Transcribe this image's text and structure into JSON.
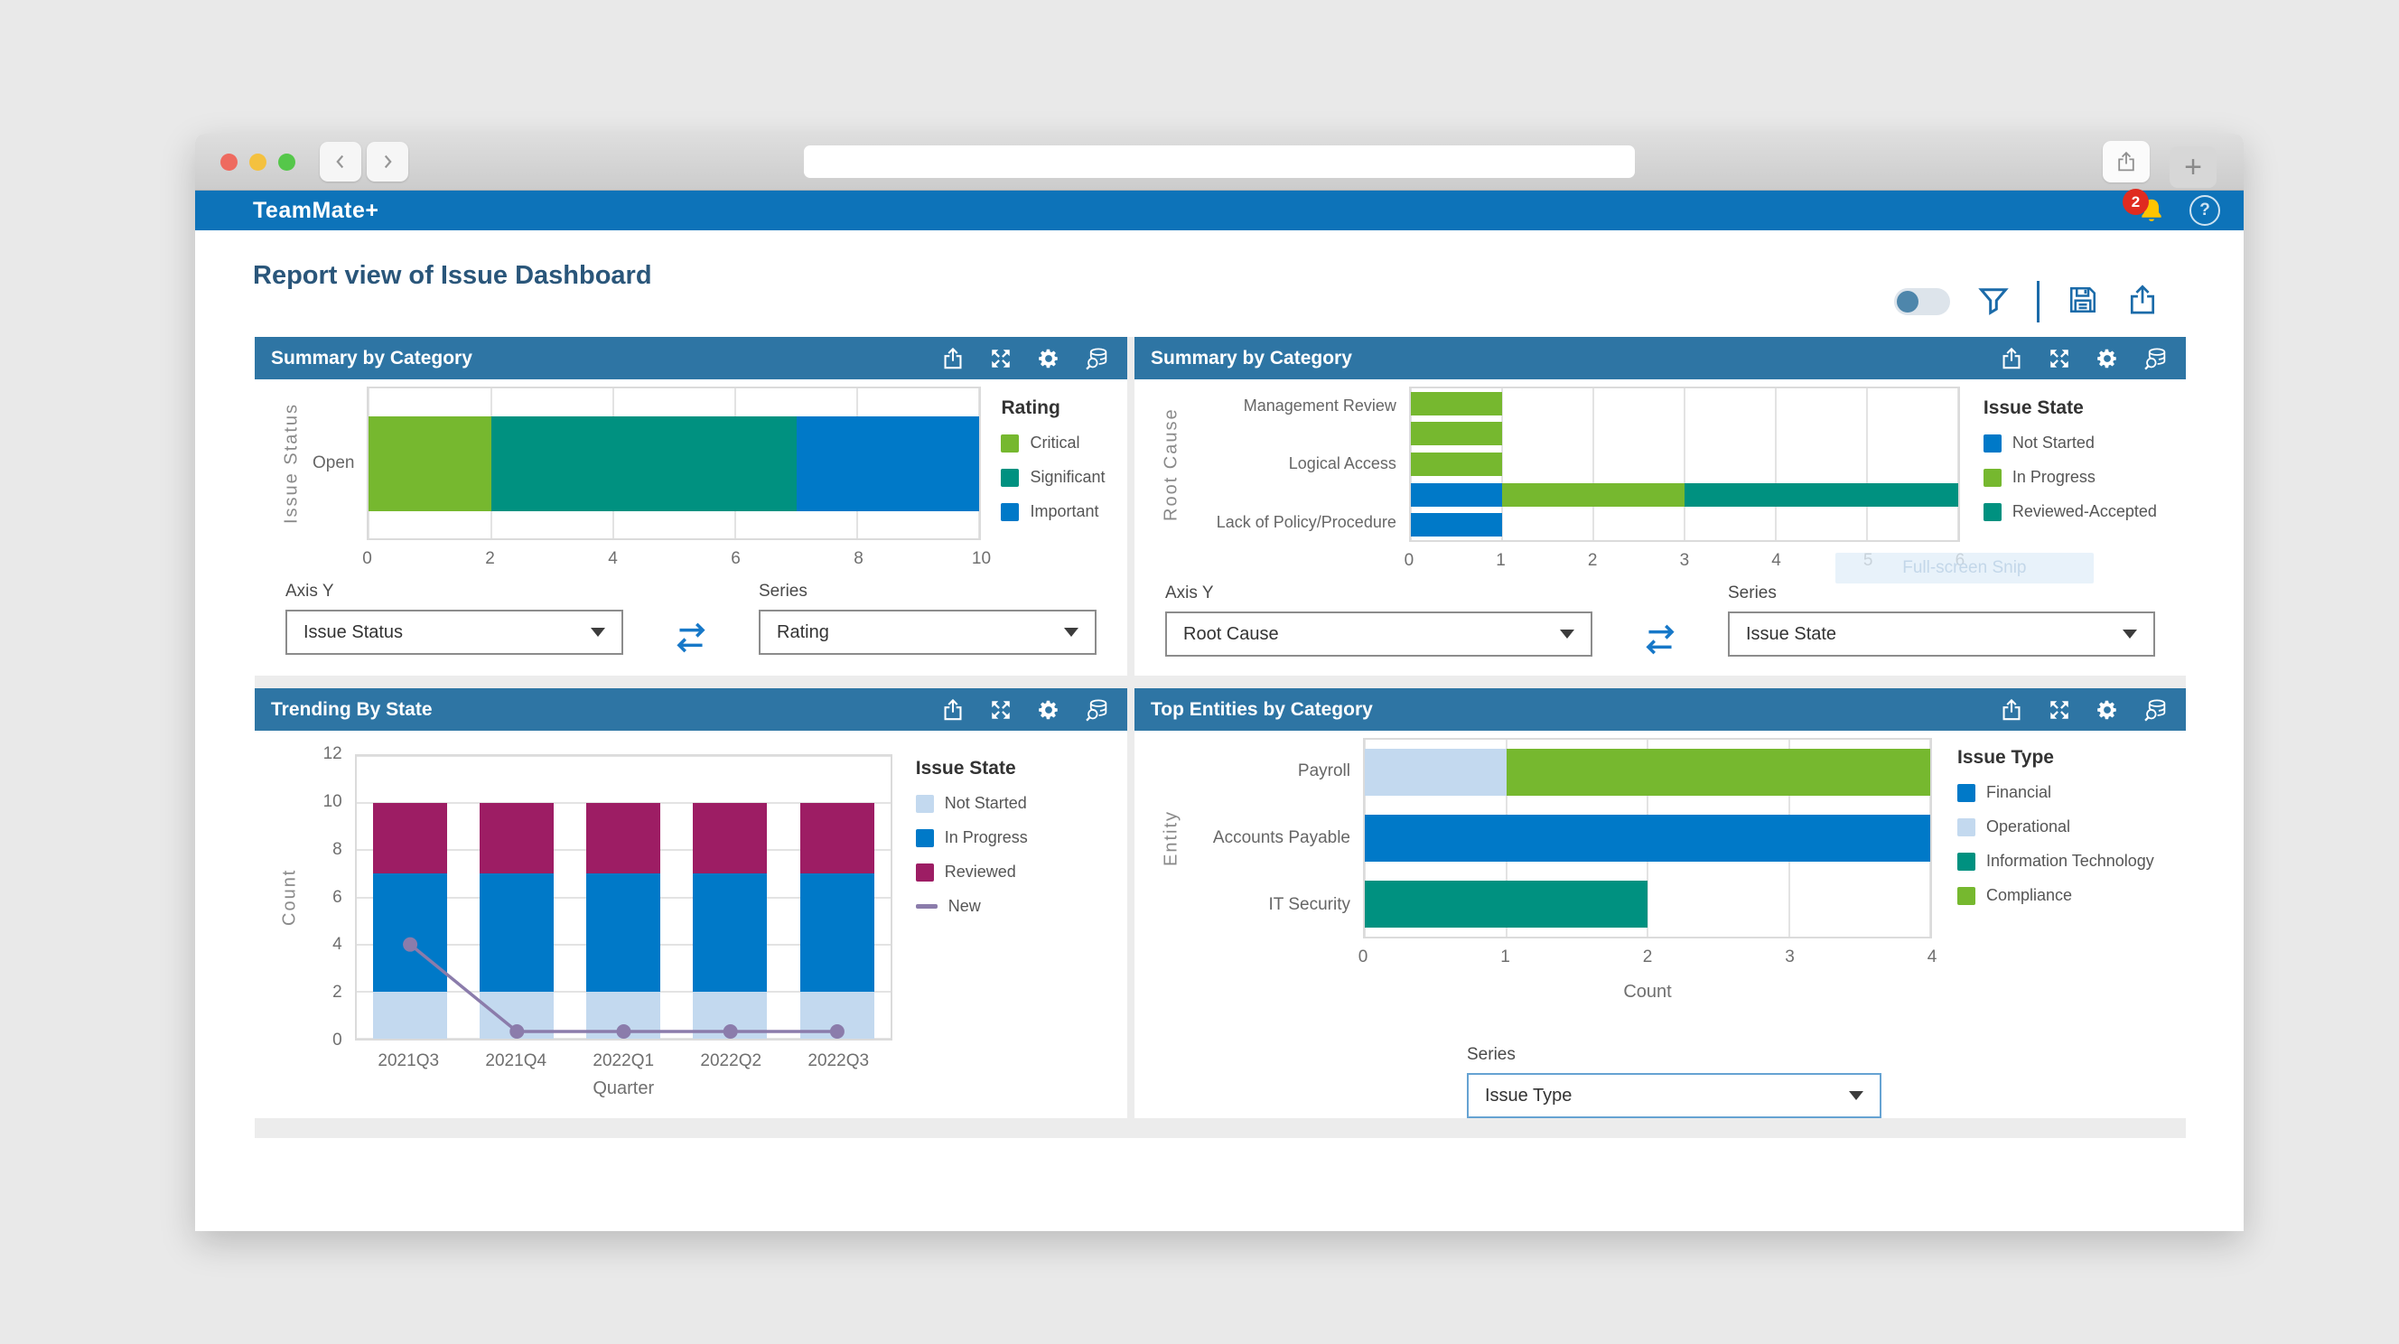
{
  "browser": {
    "address_value": "",
    "new_tab_label": "+"
  },
  "app_bar": {
    "title": "TeamMate+",
    "notification_count": "2",
    "help_label": "?"
  },
  "page": {
    "title": "Report view of Issue Dashboard"
  },
  "icons": {
    "window": [
      "close",
      "minimize",
      "zoom",
      "back-chevron",
      "forward-chevron",
      "share",
      "new-tab-plus"
    ],
    "app_bar": [
      "notification-bell",
      "help-circle"
    ],
    "toolbar": [
      "view-toggle",
      "filter-funnel",
      "save-floppy",
      "export-share"
    ],
    "panel_header": [
      "export-share",
      "expand-arrows",
      "settings-gear",
      "data-explorer"
    ]
  },
  "panels": [
    {
      "title": "Summary by Category",
      "axis_y": {
        "label": "Axis Y",
        "value": "Issue Status"
      },
      "series": {
        "label": "Series",
        "value": "Rating"
      }
    },
    {
      "title": "Summary by Category",
      "axis_y": {
        "label": "Axis Y",
        "value": "Root Cause"
      },
      "series": {
        "label": "Series",
        "value": "Issue State"
      },
      "ghost_text": "Full-screen Snip"
    },
    {
      "title": "Trending By State"
    },
    {
      "title": "Top Entities by Category",
      "series": {
        "label": "Series",
        "value": "Issue Type"
      }
    }
  ],
  "chart_data": [
    {
      "id": "summary-by-category-rating",
      "type": "stacked_bar_horizontal",
      "title": "Summary by Category",
      "xlabel": "",
      "ylabel": "Issue Status",
      "categories": [
        "Open"
      ],
      "series": [
        {
          "name": "Critical",
          "color": "#76b82f",
          "values": [
            2
          ]
        },
        {
          "name": "Significant",
          "color": "#009180",
          "values": [
            5
          ]
        },
        {
          "name": "Important",
          "color": "#0079c8",
          "values": [
            3
          ]
        }
      ],
      "xlim": [
        0,
        10
      ],
      "xticks": [
        0,
        2,
        4,
        6,
        8,
        10
      ],
      "legend_title": "Rating",
      "legend_position": "right",
      "grid": true
    },
    {
      "id": "summary-by-category-root-cause",
      "type": "stacked_bar_horizontal",
      "title": "Summary by Category",
      "xlabel": "",
      "ylabel": "Root Cause",
      "categories": [
        "Management Review",
        "",
        "Logical Access",
        "",
        "Lack of Policy/Procedure"
      ],
      "series": [
        {
          "name": "Not Started",
          "color": "#0079c8",
          "values": [
            0,
            0,
            0,
            1,
            1
          ]
        },
        {
          "name": "In Progress",
          "color": "#76b82f",
          "values": [
            1,
            1,
            1,
            2,
            0
          ]
        },
        {
          "name": "Reviewed-Accepted",
          "color": "#009180",
          "values": [
            0,
            0,
            0,
            3,
            0
          ]
        }
      ],
      "xlim": [
        0,
        6
      ],
      "xticks": [
        0,
        1,
        2,
        3,
        4,
        5,
        6
      ],
      "legend_title": "Issue State",
      "legend_position": "right",
      "grid": true
    },
    {
      "id": "trending-by-state",
      "type": "stacked_bar_vertical_with_line",
      "title": "Trending By State",
      "xlabel": "Quarter",
      "ylabel": "Count",
      "categories": [
        "2021Q3",
        "2021Q4",
        "2022Q1",
        "2022Q2",
        "2022Q3"
      ],
      "series": [
        {
          "name": "Not Started",
          "color": "#c3d9ef",
          "values": [
            2,
            2,
            2,
            2,
            2
          ]
        },
        {
          "name": "In Progress",
          "color": "#0079c8",
          "values": [
            5,
            5,
            5,
            5,
            5
          ]
        },
        {
          "name": "Reviewed",
          "color": "#9d1d64",
          "values": [
            3,
            3,
            3,
            3,
            3
          ]
        }
      ],
      "line_series": {
        "name": "New",
        "color": "#8b7cab",
        "values": [
          4,
          0,
          0,
          0,
          0
        ]
      },
      "ylim": [
        0,
        12
      ],
      "yticks": [
        0,
        2,
        4,
        6,
        8,
        10,
        12
      ],
      "legend_title": "Issue State",
      "legend_position": "right",
      "grid": true
    },
    {
      "id": "top-entities-by-category",
      "type": "stacked_bar_horizontal",
      "title": "Top Entities by Category",
      "xlabel": "Count",
      "ylabel": "Entity",
      "categories": [
        "Payroll",
        "Accounts Payable",
        "IT Security"
      ],
      "series": [
        {
          "name": "Financial",
          "color": "#0079c8",
          "values": [
            0,
            4,
            0
          ]
        },
        {
          "name": "Operational",
          "color": "#c3d9ef",
          "values": [
            1,
            0,
            0
          ]
        },
        {
          "name": "Information Technology",
          "color": "#009180",
          "values": [
            0,
            0,
            2
          ]
        },
        {
          "name": "Compliance",
          "color": "#76b82f",
          "values": [
            3,
            0,
            0
          ]
        }
      ],
      "xlim": [
        0,
        4
      ],
      "xticks": [
        0,
        1,
        2,
        3,
        4
      ],
      "legend_title": "Issue Type",
      "legend_position": "right",
      "grid": true
    }
  ]
}
